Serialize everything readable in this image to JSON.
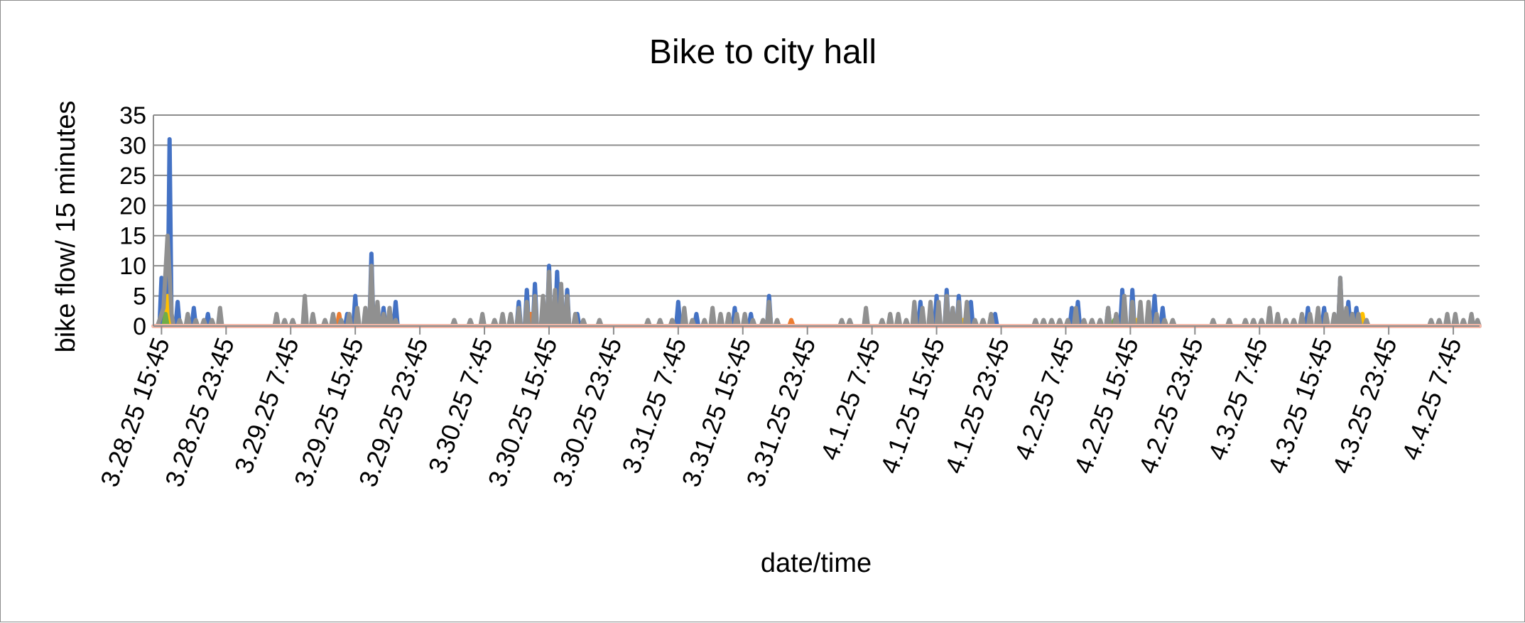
{
  "chart_data": {
    "type": "line",
    "title": "Bike to city hall",
    "xlabel": "date/time",
    "ylabel": "bike flow/ 15 minutes",
    "ylim": [
      0,
      35
    ],
    "yticks": [
      0,
      5,
      10,
      15,
      20,
      25,
      30,
      35
    ],
    "grid": true,
    "legend": "none",
    "xticks": [
      "3.28.25 15:45",
      "3.28.25 23:45",
      "3.29.25 7:45",
      "3.29.25 15:45",
      "3.29.25 23:45",
      "3.30.25 7:45",
      "3.30.25 15:45",
      "3.30.25 23:45",
      "3.31.25 7:45",
      "3.31.25 15:45",
      "3.31.25 23:45",
      "4.1.25 7:45",
      "4.1.25 15:45",
      "4.1.25 23:45",
      "4.2.25 7:45",
      "4.2.25 15:45",
      "4.2.25 23:45",
      "4.3.25 7:45",
      "4.3.25 15:45",
      "4.3.25 23:45",
      "4.4.25 7:45"
    ],
    "x_range": [
      "3.28.25 14:45",
      "4.4.25 11:00"
    ],
    "series": [
      {
        "color": "#4472C4",
        "points": [
          [
            "3.28.25 15:45",
            8
          ],
          [
            "3.28.25 16:45",
            31
          ],
          [
            "3.28.25 17:45",
            4
          ],
          [
            "3.28.25 19:45",
            3
          ],
          [
            "3.28.25 21:30",
            2
          ],
          [
            "3.29.25 14:45",
            2
          ],
          [
            "3.29.25 15:45",
            5
          ],
          [
            "3.29.25 17:45",
            12
          ],
          [
            "3.29.25 19:15",
            3
          ],
          [
            "3.29.25 20:45",
            4
          ],
          [
            "3.30.25 12:00",
            4
          ],
          [
            "3.30.25 13:00",
            6
          ],
          [
            "3.30.25 14:00",
            7
          ],
          [
            "3.30.25 15:45",
            10
          ],
          [
            "3.30.25 16:45",
            9
          ],
          [
            "3.30.25 18:00",
            6
          ],
          [
            "3.30.25 19:15",
            2
          ],
          [
            "3.31.25 7:45",
            4
          ],
          [
            "3.31.25 10:00",
            2
          ],
          [
            "3.31.25 14:45",
            3
          ],
          [
            "3.31.25 16:45",
            2
          ],
          [
            "3.31.25 19:00",
            5
          ],
          [
            "4.1.25 13:45",
            4
          ],
          [
            "4.1.25 15:45",
            5
          ],
          [
            "4.1.25 17:00",
            6
          ],
          [
            "4.1.25 18:30",
            5
          ],
          [
            "4.1.25 20:00",
            4
          ],
          [
            "4.1.25 23:00",
            2
          ],
          [
            "4.2.25 8:30",
            3
          ],
          [
            "4.2.25 9:15",
            4
          ],
          [
            "4.2.25 13:00",
            3
          ],
          [
            "4.2.25 14:45",
            6
          ],
          [
            "4.2.25 16:00",
            6
          ],
          [
            "4.2.25 18:45",
            5
          ],
          [
            "4.2.25 19:45",
            3
          ],
          [
            "4.3.25 13:45",
            3
          ],
          [
            "4.3.25 15:45",
            3
          ],
          [
            "4.3.25 17:45",
            8
          ],
          [
            "4.3.25 18:45",
            4
          ],
          [
            "4.3.25 19:45",
            3
          ]
        ]
      },
      {
        "color": "#ED7D31",
        "points": [
          [
            "3.29.25 13:45",
            2
          ],
          [
            "3.29.25 17:45",
            1
          ],
          [
            "3.30.25 13:30",
            2
          ],
          [
            "3.30.25 16:00",
            2
          ],
          [
            "3.31.25 7:00",
            1
          ],
          [
            "3.31.25 21:45",
            1
          ],
          [
            "4.1.25 17:45",
            1
          ],
          [
            "4.2.25 18:00",
            1
          ]
        ]
      },
      {
        "color": "#FFC000",
        "points": [
          [
            "3.28.25 16:30",
            5
          ],
          [
            "3.29.25 18:45",
            1
          ],
          [
            "3.30.25 16:30",
            2
          ],
          [
            "3.31.25 14:00",
            1
          ],
          [
            "4.1.25 19:00",
            1
          ],
          [
            "4.2.25 16:30",
            1
          ],
          [
            "4.2.25 20:00",
            1
          ],
          [
            "4.3.25 20:30",
            2
          ]
        ]
      },
      {
        "color": "#70AD47",
        "points": [
          [
            "3.28.25 16:15",
            2
          ],
          [
            "3.30.25 15:00",
            1
          ],
          [
            "4.2.25 13:45",
            1
          ],
          [
            "4.3.25 16:00",
            1
          ]
        ]
      },
      {
        "color": "#909090",
        "points": [
          [
            "3.28.25 15:30",
            1
          ],
          [
            "3.28.25 16:00",
            3
          ],
          [
            "3.28.25 16:30",
            15
          ],
          [
            "3.28.25 17:00",
            2
          ],
          [
            "3.28.25 18:00",
            1
          ],
          [
            "3.28.25 19:00",
            2
          ],
          [
            "3.28.25 20:00",
            1
          ],
          [
            "3.28.25 21:00",
            1
          ],
          [
            "3.28.25 22:00",
            1
          ],
          [
            "3.28.25 23:00",
            3
          ],
          [
            "3.29.25 6:00",
            2
          ],
          [
            "3.29.25 7:00",
            1
          ],
          [
            "3.29.25 8:00",
            1
          ],
          [
            "3.29.25 9:30",
            5
          ],
          [
            "3.29.25 10:30",
            2
          ],
          [
            "3.29.25 12:00",
            1
          ],
          [
            "3.29.25 13:00",
            2
          ],
          [
            "3.29.25 14:00",
            1
          ],
          [
            "3.29.25 15:00",
            2
          ],
          [
            "3.29.25 16:00",
            3
          ],
          [
            "3.29.25 17:00",
            3
          ],
          [
            "3.29.25 17:45",
            10
          ],
          [
            "3.29.25 18:30",
            4
          ],
          [
            "3.29.25 19:15",
            2
          ],
          [
            "3.29.25 20:00",
            3
          ],
          [
            "3.29.25 20:45",
            1
          ],
          [
            "3.30.25 4:00",
            1
          ],
          [
            "3.30.25 6:00",
            1
          ],
          [
            "3.30.25 7:30",
            2
          ],
          [
            "3.30.25 9:00",
            1
          ],
          [
            "3.30.25 10:00",
            2
          ],
          [
            "3.30.25 11:00",
            2
          ],
          [
            "3.30.25 12:00",
            3
          ],
          [
            "3.30.25 13:00",
            4
          ],
          [
            "3.30.25 14:00",
            5
          ],
          [
            "3.30.25 15:00",
            5
          ],
          [
            "3.30.25 15:45",
            9
          ],
          [
            "3.30.25 16:30",
            6
          ],
          [
            "3.30.25 17:15",
            7
          ],
          [
            "3.30.25 18:00",
            5
          ],
          [
            "3.30.25 19:00",
            2
          ],
          [
            "3.30.25 20:00",
            1
          ],
          [
            "3.30.25 22:00",
            1
          ],
          [
            "3.31.25 4:00",
            1
          ],
          [
            "3.31.25 5:30",
            1
          ],
          [
            "3.31.25 7:00",
            1
          ],
          [
            "3.31.25 8:30",
            3
          ],
          [
            "3.31.25 9:30",
            1
          ],
          [
            "3.31.25 11:00",
            1
          ],
          [
            "3.31.25 12:00",
            3
          ],
          [
            "3.31.25 13:00",
            2
          ],
          [
            "3.31.25 14:00",
            2
          ],
          [
            "3.31.25 15:00",
            2
          ],
          [
            "3.31.25 16:00",
            2
          ],
          [
            "3.31.25 17:00",
            1
          ],
          [
            "3.31.25 18:15",
            1
          ],
          [
            "3.31.25 19:00",
            4
          ],
          [
            "3.31.25 20:00",
            1
          ],
          [
            "4.1.25 4:00",
            1
          ],
          [
            "4.1.25 5:00",
            1
          ],
          [
            "4.1.25 7:00",
            3
          ],
          [
            "4.1.25 9:00",
            1
          ],
          [
            "4.1.25 10:00",
            2
          ],
          [
            "4.1.25 11:00",
            2
          ],
          [
            "4.1.25 12:00",
            1
          ],
          [
            "4.1.25 13:00",
            4
          ],
          [
            "4.1.25 14:00",
            3
          ],
          [
            "4.1.25 15:00",
            4
          ],
          [
            "4.1.25 16:00",
            4
          ],
          [
            "4.1.25 17:00",
            5
          ],
          [
            "4.1.25 17:45",
            3
          ],
          [
            "4.1.25 18:30",
            4
          ],
          [
            "4.1.25 19:30",
            4
          ],
          [
            "4.1.25 20:30",
            1
          ],
          [
            "4.1.25 21:30",
            1
          ],
          [
            "4.1.25 22:30",
            2
          ],
          [
            "4.2.25 4:00",
            1
          ],
          [
            "4.2.25 5:00",
            1
          ],
          [
            "4.2.25 6:00",
            1
          ],
          [
            "4.2.25 7:00",
            1
          ],
          [
            "4.2.25 8:00",
            1
          ],
          [
            "4.2.25 9:00",
            3
          ],
          [
            "4.2.25 10:00",
            1
          ],
          [
            "4.2.25 11:00",
            1
          ],
          [
            "4.2.25 12:00",
            1
          ],
          [
            "4.2.25 13:00",
            3
          ],
          [
            "4.2.25 14:00",
            2
          ],
          [
            "4.2.25 15:00",
            5
          ],
          [
            "4.2.25 16:00",
            4
          ],
          [
            "4.2.25 17:00",
            4
          ],
          [
            "4.2.25 18:00",
            4
          ],
          [
            "4.2.25 19:00",
            2
          ],
          [
            "4.2.25 20:00",
            1
          ],
          [
            "4.2.25 21:00",
            1
          ],
          [
            "4.3.25 2:00",
            1
          ],
          [
            "4.3.25 4:00",
            1
          ],
          [
            "4.3.25 6:00",
            1
          ],
          [
            "4.3.25 7:00",
            1
          ],
          [
            "4.3.25 8:00",
            1
          ],
          [
            "4.3.25 9:00",
            3
          ],
          [
            "4.3.25 10:00",
            2
          ],
          [
            "4.3.25 11:00",
            1
          ],
          [
            "4.3.25 12:00",
            1
          ],
          [
            "4.3.25 13:00",
            2
          ],
          [
            "4.3.25 14:00",
            2
          ],
          [
            "4.3.25 15:00",
            3
          ],
          [
            "4.3.25 16:00",
            2
          ],
          [
            "4.3.25 17:00",
            2
          ],
          [
            "4.3.25 17:45",
            8
          ],
          [
            "4.3.25 18:30",
            3
          ],
          [
            "4.3.25 19:15",
            2
          ],
          [
            "4.3.25 20:00",
            2
          ],
          [
            "4.3.25 21:00",
            1
          ],
          [
            "4.4.25 5:00",
            1
          ],
          [
            "4.4.25 6:00",
            1
          ],
          [
            "4.4.25 7:00",
            2
          ],
          [
            "4.4.25 8:00",
            2
          ],
          [
            "4.4.25 9:00",
            1
          ],
          [
            "4.4.25 10:00",
            2
          ],
          [
            "4.4.25 10:45",
            1
          ]
        ]
      },
      {
        "color": "#F4B8A8",
        "points": [
          [
            "3.28.25 14:45",
            0
          ],
          [
            "4.4.25 11:00",
            0
          ]
        ]
      }
    ]
  }
}
